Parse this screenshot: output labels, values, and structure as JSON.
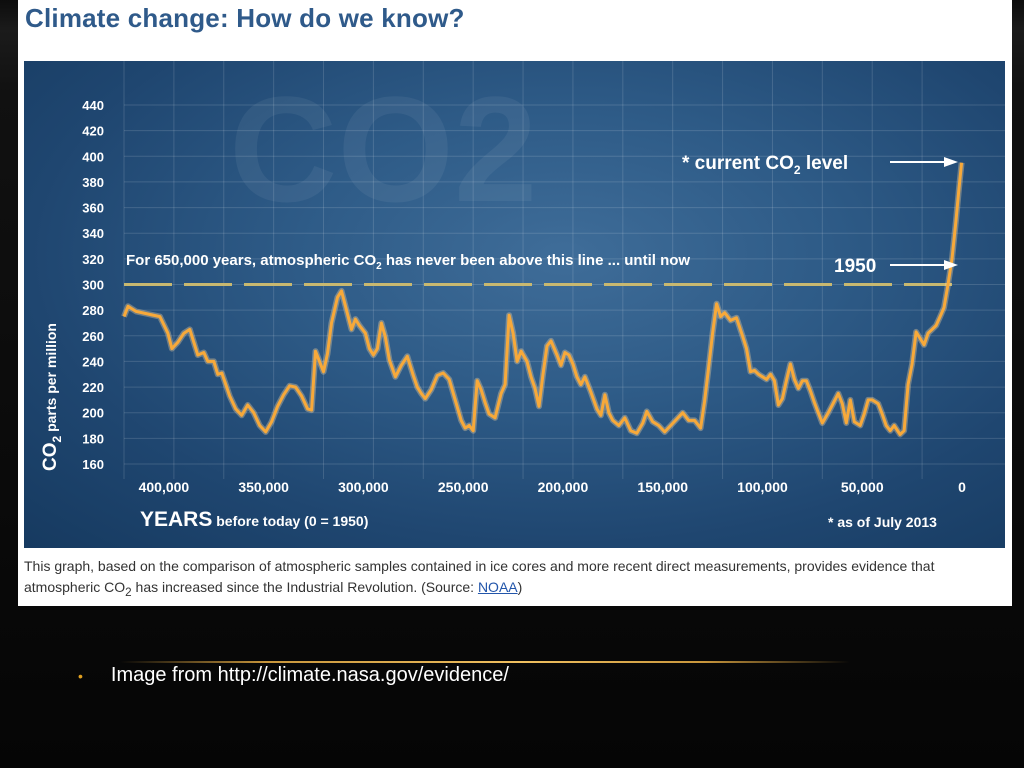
{
  "slide": {
    "bullet_text": "Image from http://climate.nasa.gov/evidence/",
    "accent_color": "#e0a020"
  },
  "figure": {
    "title": "Climate change: How do we know?",
    "caption_part1": "This graph, based on the comparison of atmospheric samples contained in ice cores and more recent direct measurements, provides evidence that atmospheric CO",
    "caption_sub": "2",
    "caption_part2": " has increased since the Industrial Revolution. (Source: ",
    "caption_link": "NOAA",
    "caption_end": ")"
  },
  "chart_data": {
    "type": "line",
    "watermark": "CO2",
    "ylabel_main": "CO",
    "ylabel_sub": "2",
    "ylabel_rest": " parts per million",
    "xlabel_main": "YEARS",
    "xlabel_rest": " before today (0 = 1950)",
    "x_reversed": true,
    "xlim": [
      420000,
      0
    ],
    "ylim": [
      160,
      440
    ],
    "y_ticks": [
      160,
      180,
      200,
      220,
      240,
      260,
      280,
      300,
      320,
      340,
      360,
      380,
      400,
      420,
      440
    ],
    "x_ticks": [
      400000,
      350000,
      300000,
      250000,
      200000,
      150000,
      100000,
      50000,
      0
    ],
    "x_tick_labels": [
      "400,000",
      "350,000",
      "300,000",
      "250,000",
      "200,000",
      "150,000",
      "100,000",
      "50,000",
      "0"
    ],
    "grid": true,
    "threshold": {
      "value": 300,
      "text_main": "For 650,000 years, atmospheric CO",
      "text_sub": "2",
      "text_rest": " has never been above this line ... until now"
    },
    "annotation_current": {
      "text_main": "* current CO",
      "text_sub": "2",
      "text_rest": " level"
    },
    "annotation_1950": {
      "text": "1950"
    },
    "footnote": "* as of July 2013",
    "line_color": "#f7a93a",
    "threshold_color": "#c8b870",
    "series": [
      {
        "values": [
          [
            420000,
            275
          ],
          [
            418000,
            283
          ],
          [
            414000,
            279
          ],
          [
            408000,
            277
          ],
          [
            402000,
            275
          ],
          [
            398000,
            262
          ],
          [
            396000,
            250
          ],
          [
            393000,
            255
          ],
          [
            390000,
            262
          ],
          [
            387000,
            265
          ],
          [
            385000,
            255
          ],
          [
            383000,
            245
          ],
          [
            380000,
            247
          ],
          [
            378000,
            240
          ],
          [
            375000,
            240
          ],
          [
            373000,
            230
          ],
          [
            371000,
            231
          ],
          [
            369000,
            222
          ],
          [
            367000,
            213
          ],
          [
            364000,
            203
          ],
          [
            361000,
            198
          ],
          [
            358000,
            206
          ],
          [
            355000,
            200
          ],
          [
            352000,
            190
          ],
          [
            349000,
            185
          ],
          [
            346000,
            193
          ],
          [
            343000,
            205
          ],
          [
            340000,
            214
          ],
          [
            337000,
            221
          ],
          [
            334000,
            220
          ],
          [
            331000,
            213
          ],
          [
            328000,
            203
          ],
          [
            326000,
            202
          ],
          [
            324000,
            248
          ],
          [
            322000,
            240
          ],
          [
            320000,
            232
          ],
          [
            318000,
            246
          ],
          [
            316000,
            270
          ],
          [
            313000,
            290
          ],
          [
            311000,
            295
          ],
          [
            309000,
            283
          ],
          [
            306000,
            265
          ],
          [
            304000,
            273
          ],
          [
            302000,
            268
          ],
          [
            299000,
            262
          ],
          [
            297000,
            250
          ],
          [
            295000,
            245
          ],
          [
            293000,
            250
          ],
          [
            291000,
            270
          ],
          [
            289000,
            259
          ],
          [
            287000,
            241
          ],
          [
            284000,
            228
          ],
          [
            281000,
            237
          ],
          [
            278000,
            244
          ],
          [
            275000,
            229
          ],
          [
            273000,
            220
          ],
          [
            271000,
            215
          ],
          [
            269000,
            211
          ],
          [
            266000,
            218
          ],
          [
            263000,
            229
          ],
          [
            260000,
            231
          ],
          [
            257000,
            226
          ],
          [
            254000,
            210
          ],
          [
            251000,
            194
          ],
          [
            249000,
            188
          ],
          [
            247000,
            190
          ],
          [
            245000,
            186
          ],
          [
            243000,
            225
          ],
          [
            241000,
            218
          ],
          [
            239000,
            208
          ],
          [
            237000,
            199
          ],
          [
            234000,
            196
          ],
          [
            231000,
            215
          ],
          [
            229000,
            222
          ],
          [
            227000,
            276
          ],
          [
            225000,
            262
          ],
          [
            223000,
            240
          ],
          [
            221000,
            248
          ],
          [
            218000,
            240
          ],
          [
            216000,
            228
          ],
          [
            214000,
            219
          ],
          [
            212000,
            205
          ],
          [
            210000,
            230
          ],
          [
            208000,
            252
          ],
          [
            206000,
            256
          ],
          [
            203000,
            245
          ],
          [
            201000,
            237
          ],
          [
            199000,
            247
          ],
          [
            197000,
            245
          ],
          [
            195000,
            238
          ],
          [
            193000,
            228
          ],
          [
            191000,
            222
          ],
          [
            189000,
            228
          ],
          [
            186000,
            216
          ],
          [
            183000,
            203
          ],
          [
            181000,
            198
          ],
          [
            179000,
            214
          ],
          [
            177000,
            200
          ],
          [
            175000,
            194
          ],
          [
            172000,
            190
          ],
          [
            169000,
            196
          ],
          [
            166000,
            186
          ],
          [
            163000,
            184
          ],
          [
            160000,
            192
          ],
          [
            158000,
            201
          ],
          [
            155000,
            193
          ],
          [
            152000,
            190
          ],
          [
            149000,
            185
          ],
          [
            146000,
            190
          ],
          [
            143000,
            195
          ],
          [
            140000,
            200
          ],
          [
            137000,
            194
          ],
          [
            134000,
            194
          ],
          [
            131000,
            188
          ],
          [
            129000,
            209
          ],
          [
            127000,
            235
          ],
          [
            125000,
            262
          ],
          [
            123000,
            285
          ],
          [
            121000,
            275
          ],
          [
            119000,
            278
          ],
          [
            116000,
            272
          ],
          [
            113000,
            274
          ],
          [
            110000,
            260
          ],
          [
            108000,
            250
          ],
          [
            106000,
            232
          ],
          [
            104000,
            233
          ],
          [
            102000,
            230
          ],
          [
            100000,
            228
          ],
          [
            98000,
            226
          ],
          [
            96000,
            230
          ],
          [
            94000,
            225
          ],
          [
            92000,
            206
          ],
          [
            90000,
            211
          ],
          [
            88000,
            225
          ],
          [
            86000,
            238
          ],
          [
            84000,
            226
          ],
          [
            82000,
            219
          ],
          [
            80000,
            225
          ],
          [
            78000,
            225
          ],
          [
            76000,
            217
          ],
          [
            74000,
            208
          ],
          [
            72000,
            200
          ],
          [
            70000,
            192
          ],
          [
            67000,
            200
          ],
          [
            64000,
            209
          ],
          [
            62000,
            215
          ],
          [
            60000,
            207
          ],
          [
            58000,
            192
          ],
          [
            56000,
            210
          ],
          [
            54000,
            193
          ],
          [
            51000,
            190
          ],
          [
            49000,
            199
          ],
          [
            47000,
            210
          ],
          [
            45000,
            210
          ],
          [
            42000,
            207
          ],
          [
            40000,
            199
          ],
          [
            38000,
            190
          ],
          [
            36000,
            186
          ],
          [
            34000,
            190
          ],
          [
            31000,
            183
          ],
          [
            29000,
            186
          ],
          [
            27000,
            222
          ],
          [
            25000,
            238
          ],
          [
            23000,
            263
          ],
          [
            21000,
            258
          ],
          [
            19000,
            253
          ],
          [
            17000,
            262
          ],
          [
            15000,
            265
          ],
          [
            13000,
            268
          ],
          [
            11000,
            275
          ],
          [
            9000,
            282
          ],
          [
            7000,
            300
          ],
          [
            5000,
            320
          ],
          [
            3000,
            350
          ],
          [
            1500,
            375
          ],
          [
            200,
            395
          ]
        ]
      }
    ]
  }
}
